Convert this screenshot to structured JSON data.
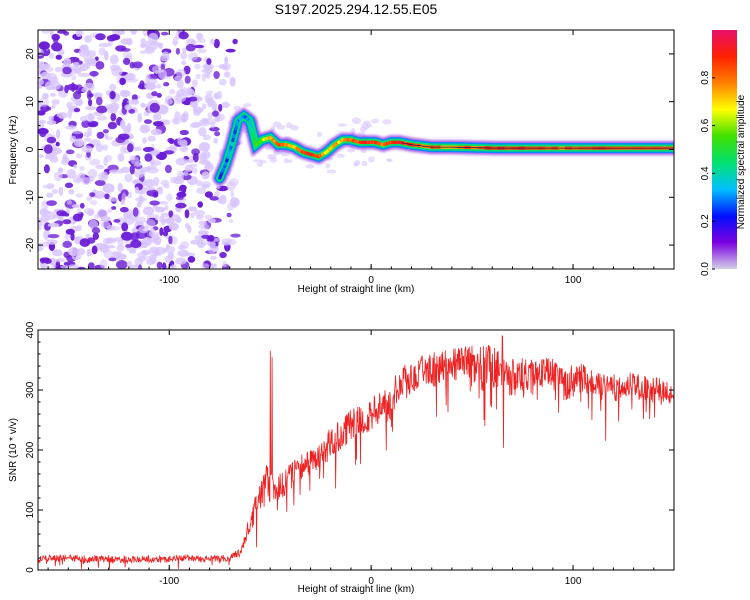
{
  "title": "S197.2025.294.12.55.E05",
  "colors": {
    "snr_line": "#ee2222",
    "background": "#ffffff",
    "axis": "#000000",
    "noise_light": "#d8c4ff",
    "noise_dark": "#6a1cd6"
  },
  "chart_data": [
    {
      "type": "heatmap",
      "name": "spectrogram",
      "xlabel": "Height of straight line (km)",
      "ylabel": "Frequency (Hz)",
      "xlim": [
        -165,
        150
      ],
      "ylim": [
        -25,
        25
      ],
      "xticks": [
        -100,
        0,
        100
      ],
      "xtick_labels": [
        "-100",
        "0",
        "100"
      ],
      "yticks": [
        -20,
        -10,
        0,
        10,
        20
      ],
      "ytick_labels": [
        "-20",
        "-10",
        "0",
        "10",
        "20"
      ],
      "noise_region_x": [
        -165,
        -70
      ],
      "ridge": {
        "description": "frequency of the dominant spectral line (Hz) vs height (km)",
        "x": [
          -75,
          -72,
          -69,
          -66,
          -63,
          -60,
          -57,
          -54,
          -50,
          -46,
          -42,
          -38,
          -34,
          -30,
          -26,
          -22,
          -18,
          -14,
          -10,
          -6,
          -2,
          2,
          6,
          10,
          14,
          20,
          30,
          40,
          60,
          80,
          100,
          120,
          150
        ],
        "y": [
          -6,
          -3,
          1,
          6,
          7,
          6,
          1,
          2,
          2.5,
          1,
          1,
          0.5,
          -0.5,
          -1,
          -1.5,
          -0.5,
          1,
          2,
          2,
          1.5,
          1.5,
          1.5,
          1,
          1.5,
          1.5,
          1,
          0.5,
          0.5,
          0.3,
          0.3,
          0.3,
          0.3,
          0.3
        ],
        "amplitude": [
          0.2,
          0.25,
          0.3,
          0.3,
          0.3,
          0.3,
          0.5,
          0.6,
          0.7,
          0.85,
          0.8,
          0.7,
          0.85,
          0.9,
          0.85,
          0.7,
          0.75,
          0.7,
          0.8,
          0.85,
          0.9,
          0.85,
          0.8,
          0.85,
          0.9,
          0.85,
          0.8,
          0.75,
          0.85,
          0.85,
          0.8,
          0.85,
          0.85
        ]
      },
      "colorbar": {
        "label": "Normalized spectral amplitude",
        "range": [
          0,
          1
        ],
        "ticks": [
          0.0,
          0.2,
          0.4,
          0.6,
          0.8
        ],
        "tick_labels": [
          "0.0",
          "0.2",
          "0.4",
          "0.6",
          "0.8"
        ],
        "colormap": [
          "#d4d0e8",
          "#7b00e0",
          "#0010ff",
          "#00c0ff",
          "#00e070",
          "#40e000",
          "#ffff00",
          "#ff8000",
          "#ff2000",
          "#e8106a"
        ]
      }
    },
    {
      "type": "line",
      "name": "snr",
      "xlabel": "Height of straight line (km)",
      "ylabel": "SNR (10 * v/v)",
      "xlim": [
        -165,
        150
      ],
      "ylim": [
        0,
        400
      ],
      "xticks": [
        -100,
        0,
        100
      ],
      "xtick_labels": [
        "-100",
        "0",
        "100"
      ],
      "yticks": [
        0,
        100,
        200,
        300,
        400
      ],
      "ytick_labels": [
        "0",
        "100",
        "200",
        "300",
        "400"
      ],
      "series": [
        {
          "name": "SNR",
          "x": [
            -165,
            -150,
            -140,
            -130,
            -120,
            -110,
            -100,
            -90,
            -80,
            -70,
            -65,
            -60,
            -55,
            -52,
            -50,
            -48,
            -45,
            -40,
            -35,
            -30,
            -25,
            -20,
            -15,
            -10,
            -5,
            0,
            5,
            10,
            15,
            20,
            25,
            30,
            35,
            40,
            45,
            50,
            55,
            60,
            65,
            70,
            75,
            80,
            85,
            90,
            95,
            100,
            105,
            110,
            115,
            120,
            125,
            130,
            135,
            140,
            145,
            150
          ],
          "mean": [
            18,
            20,
            18,
            19,
            17,
            18,
            18,
            19,
            18,
            20,
            28,
            80,
            120,
            150,
            140,
            130,
            140,
            155,
            170,
            180,
            195,
            215,
            225,
            240,
            250,
            260,
            275,
            290,
            310,
            320,
            330,
            335,
            335,
            340,
            345,
            340,
            335,
            340,
            330,
            320,
            325,
            320,
            330,
            325,
            310,
            315,
            320,
            310,
            305,
            305,
            300,
            310,
            305,
            300,
            295,
            300
          ],
          "spread": [
            12,
            12,
            12,
            12,
            12,
            12,
            12,
            12,
            12,
            12,
            15,
            40,
            50,
            60,
            60,
            45,
            45,
            45,
            45,
            45,
            50,
            50,
            50,
            55,
            55,
            55,
            55,
            55,
            60,
            60,
            60,
            60,
            60,
            60,
            70,
            70,
            75,
            70,
            70,
            65,
            60,
            60,
            55,
            55,
            55,
            55,
            50,
            50,
            45,
            45,
            45,
            45,
            45,
            45,
            45,
            45
          ],
          "peaks": [
            {
              "x": -50,
              "y": 365
            },
            {
              "x": -49,
              "y": 355
            },
            {
              "x": 58,
              "y": 375
            },
            {
              "x": 65,
              "y": 390
            }
          ]
        }
      ]
    }
  ]
}
